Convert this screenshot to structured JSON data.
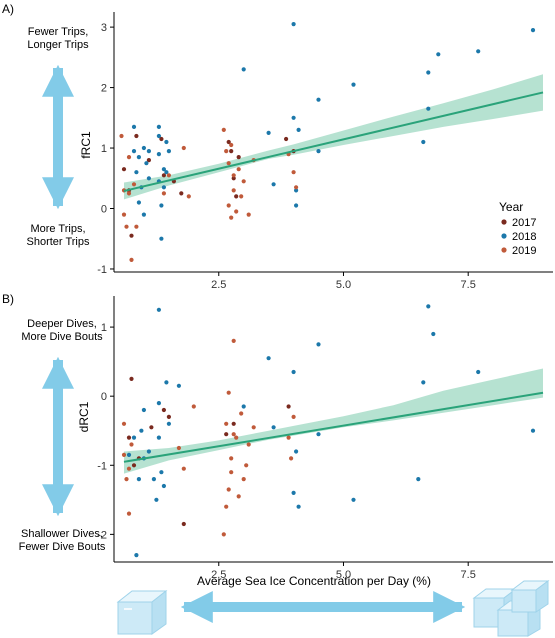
{
  "colors": {
    "y2017": "#7a2a1f",
    "y2018": "#1c78aa",
    "y2019": "#c05a3a",
    "trend": "#2aa37a",
    "band": "#9dd8c2",
    "arrow": "#82cbe8",
    "ice": "#cdeaf7"
  },
  "icons": {
    "low_ice": "ice-cube-icon",
    "high_ice": "ice-cubes-icon",
    "scale_arrow": "double-arrow-icon"
  },
  "panel_a": {
    "tag": "A)",
    "ylabel": "fRC1",
    "top_annotation": [
      "Fewer Trips,",
      "Longer Trips"
    ],
    "bottom_annotation": [
      "More Trips,",
      "Shorter Trips"
    ]
  },
  "panel_b": {
    "tag": "B)",
    "ylabel": "dRC1",
    "top_annotation": [
      "Deeper Dives,",
      "More Dive Bouts"
    ],
    "bottom_annotation": [
      "Shallower Dives,",
      "Fewer Dive Bouts"
    ]
  },
  "legend": {
    "title": "Year",
    "entries": [
      {
        "label": "2017",
        "color": "#7a2a1f"
      },
      {
        "label": "2018",
        "color": "#1c78aa"
      },
      {
        "label": "2019",
        "color": "#c05a3a"
      }
    ]
  },
  "xlabel": "Average Sea Ice Concentration per Day (%)",
  "chart_data": [
    {
      "type": "scatter",
      "ylabel": "fRC1",
      "xlim": [
        0.4,
        9.2
      ],
      "ylim": [
        -1.05,
        3.25
      ],
      "xticks": [
        "2.5",
        "5.0",
        "7.5"
      ],
      "xtick_values": [
        2.5,
        5.0,
        7.5
      ],
      "yticks": [
        "-1",
        "0",
        "1",
        "2",
        "3"
      ],
      "ytick_values": [
        -1,
        0,
        1,
        2,
        3
      ],
      "grid": false,
      "legend_position": "right",
      "trend": {
        "x": [
          0.6,
          9.0
        ],
        "y": [
          0.29,
          1.92
        ]
      },
      "band": {
        "x": [
          0.6,
          1.5,
          2.5,
          3.5,
          4.0,
          5.0,
          6.0,
          7.0,
          8.0,
          9.0
        ],
        "lower": [
          0.15,
          0.38,
          0.6,
          0.82,
          0.89,
          1.05,
          1.2,
          1.35,
          1.48,
          1.62
        ],
        "upper": [
          0.43,
          0.55,
          0.74,
          0.96,
          1.06,
          1.29,
          1.52,
          1.74,
          1.97,
          2.22
        ]
      },
      "series": [
        {
          "name": "2017",
          "x": [
            0.6,
            0.7,
            0.75,
            0.85,
            1.1,
            1.35,
            1.4,
            1.6,
            1.75,
            2.7,
            2.75,
            2.8,
            2.85,
            2.9,
            3.85,
            4.0
          ],
          "y": [
            0.65,
            0.3,
            -0.45,
            1.2,
            0.8,
            1.15,
            0.55,
            0.45,
            0.25,
            1.1,
            0.95,
            0.5,
            0.2,
            0.85,
            1.15,
            0.95
          ]
        },
        {
          "name": "2018",
          "x": [
            0.8,
            0.8,
            0.85,
            0.9,
            0.9,
            0.95,
            1.0,
            1.0,
            1.05,
            1.1,
            1.1,
            1.3,
            1.3,
            1.3,
            1.3,
            1.35,
            1.35,
            1.4,
            1.4,
            1.45,
            1.45,
            1.5,
            3.0,
            3.5,
            3.6,
            4.0,
            4.0,
            4.05,
            4.05,
            4.1,
            4.5,
            4.5,
            5.2,
            6.6,
            6.7,
            6.7,
            6.9,
            7.7,
            8.8
          ],
          "y": [
            1.35,
            0.95,
            0.6,
            0.1,
            0.85,
            0.35,
            -0.1,
            1.0,
            0.75,
            0.5,
            0.95,
            1.35,
            1.2,
            0.9,
            0.45,
            0.05,
            -0.5,
            0.65,
            0.35,
            1.1,
            0.6,
            0.95,
            2.3,
            1.25,
            0.4,
            3.05,
            1.5,
            0.3,
            0.05,
            1.3,
            1.8,
            0.95,
            2.05,
            1.1,
            2.25,
            1.65,
            2.55,
            2.6,
            2.95
          ]
        },
        {
          "name": "2019",
          "x": [
            0.55,
            0.6,
            0.6,
            0.65,
            0.7,
            0.7,
            0.75,
            0.8,
            0.85,
            1.4,
            1.5,
            1.8,
            1.9,
            2.6,
            2.65,
            2.7,
            2.7,
            2.75,
            2.75,
            2.8,
            2.8,
            2.85,
            2.9,
            2.95,
            3.0,
            3.1,
            3.2,
            3.9,
            4.0,
            4.05
          ],
          "y": [
            1.2,
            0.3,
            -0.1,
            -0.3,
            0.25,
            0.85,
            -0.85,
            0.4,
            -0.3,
            0.25,
            0.55,
            1.0,
            0.2,
            1.3,
            0.95,
            0.75,
            0.05,
            1.05,
            -0.15,
            0.55,
            0.3,
            -0.05,
            0.65,
            0.2,
            0.45,
            -0.1,
            0.8,
            0.9,
            0.6,
            0.35
          ]
        }
      ]
    },
    {
      "type": "scatter",
      "ylabel": "dRC1",
      "xlim": [
        0.4,
        9.2
      ],
      "ylim": [
        -2.4,
        1.45
      ],
      "xticks": [
        "2.5",
        "5.0",
        "7.5"
      ],
      "xtick_values": [
        2.5,
        5.0,
        7.5
      ],
      "yticks": [
        "-2",
        "-1",
        "0",
        "1"
      ],
      "ytick_values": [
        -2,
        -1,
        0,
        1
      ],
      "grid": false,
      "trend": {
        "x": [
          0.6,
          9.0
        ],
        "y": [
          -0.95,
          0.05
        ]
      },
      "band": {
        "x": [
          0.6,
          1.5,
          2.5,
          3.5,
          4.0,
          5.0,
          6.0,
          7.0,
          8.0,
          9.0
        ],
        "lower": [
          -1.12,
          -0.93,
          -0.78,
          -0.63,
          -0.57,
          -0.45,
          -0.35,
          -0.24,
          -0.13,
          -0.02
        ],
        "upper": [
          -0.8,
          -0.75,
          -0.64,
          -0.5,
          -0.43,
          -0.29,
          -0.13,
          0.08,
          0.24,
          0.4
        ]
      },
      "series": [
        {
          "name": "2017",
          "x": [
            0.7,
            0.75,
            0.8,
            0.9,
            1.15,
            1.4,
            1.5,
            1.8,
            2.65,
            2.8,
            3.9
          ],
          "y": [
            -0.6,
            0.25,
            -1.0,
            -0.9,
            -0.45,
            -0.2,
            -0.3,
            -1.85,
            -0.55,
            -0.4,
            -0.15
          ]
        },
        {
          "name": "2018",
          "x": [
            0.7,
            0.8,
            0.85,
            0.9,
            0.95,
            1.0,
            1.0,
            1.1,
            1.2,
            1.25,
            1.3,
            1.3,
            1.3,
            1.35,
            1.4,
            1.45,
            1.5,
            1.7,
            3.0,
            3.5,
            3.6,
            4.0,
            4.0,
            4.05,
            4.1,
            4.5,
            4.5,
            5.2,
            6.5,
            6.6,
            6.7,
            6.8,
            7.7,
            8.8
          ],
          "y": [
            -0.85,
            -0.6,
            -2.3,
            -1.2,
            -0.5,
            -0.9,
            -0.2,
            -0.8,
            -1.2,
            -1.5,
            1.25,
            -0.1,
            -0.6,
            -1.1,
            -1.3,
            0.2,
            -0.4,
            0.15,
            -0.15,
            0.55,
            -0.45,
            0.35,
            -1.4,
            -0.8,
            -1.6,
            0.75,
            -0.55,
            -1.5,
            -1.2,
            0.2,
            1.3,
            0.9,
            0.35,
            -0.5
          ]
        },
        {
          "name": "2019",
          "x": [
            0.6,
            0.6,
            0.65,
            0.7,
            0.7,
            0.75,
            1.7,
            1.8,
            2.0,
            2.6,
            2.65,
            2.65,
            2.7,
            2.7,
            2.75,
            2.75,
            2.8,
            2.8,
            2.85,
            2.9,
            2.95,
            3.0,
            3.05,
            3.1,
            3.2,
            3.9,
            3.95,
            4.0
          ],
          "y": [
            -0.4,
            -0.85,
            -1.2,
            -1.7,
            -1.05,
            -0.7,
            -0.75,
            -1.05,
            -0.15,
            -2.0,
            -1.6,
            -0.4,
            0.05,
            -1.35,
            -0.9,
            -1.1,
            0.8,
            -0.55,
            -0.6,
            -1.45,
            -0.25,
            -1.2,
            -1.0,
            -0.7,
            -0.45,
            -0.6,
            -0.9,
            -0.3
          ]
        }
      ]
    }
  ]
}
